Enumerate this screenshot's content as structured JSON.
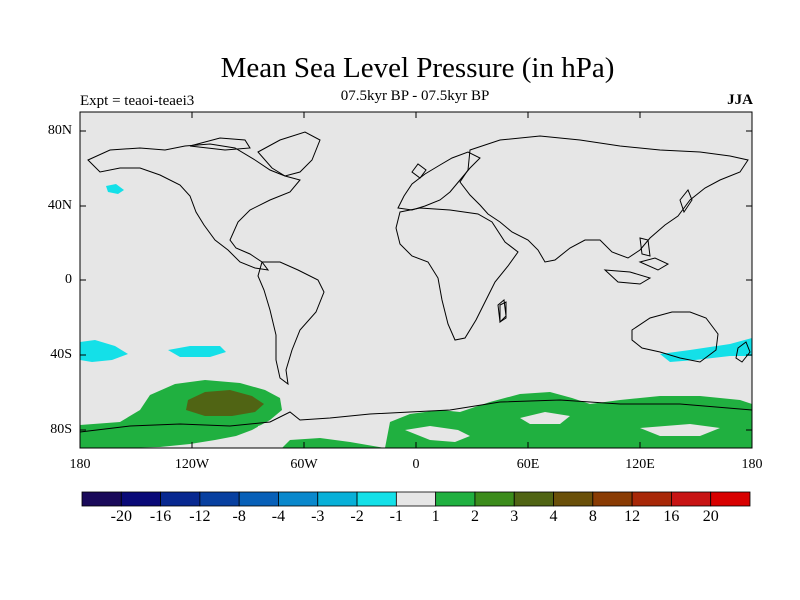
{
  "title": "Mean Sea Level Pressure (in hPa)",
  "subtitle": "07.5kyr BP - 07.5kyr BP",
  "expt": "Expt = teaoi-teaei3",
  "season": "JJA",
  "lat_labels": [
    "80N",
    "40N",
    "0",
    "40S",
    "80S"
  ],
  "lon_labels": [
    "180",
    "120W",
    "60W",
    "0",
    "60E",
    "120E",
    "180"
  ],
  "colorbar": {
    "labels": [
      "-20",
      "-16",
      "-12",
      "-8",
      "-4",
      "-3",
      "-2",
      "-1",
      "1",
      "2",
      "3",
      "4",
      "8",
      "12",
      "16",
      "20"
    ],
    "colors": [
      "#1a0a5a",
      "#0a0a78",
      "#082890",
      "#0840a0",
      "#0860b8",
      "#0a88cc",
      "#08b0d8",
      "#14e0e8",
      "#e6e6e6",
      "#20b040",
      "#3c8c1c",
      "#506414",
      "#6a500a",
      "#8a3c04",
      "#a82808",
      "#c81414",
      "#d80000"
    ]
  },
  "colors": {
    "background": "#e6e6e6",
    "cyan": "#14e0e8",
    "green": "#20b040",
    "darkgreen": "#506414"
  }
}
